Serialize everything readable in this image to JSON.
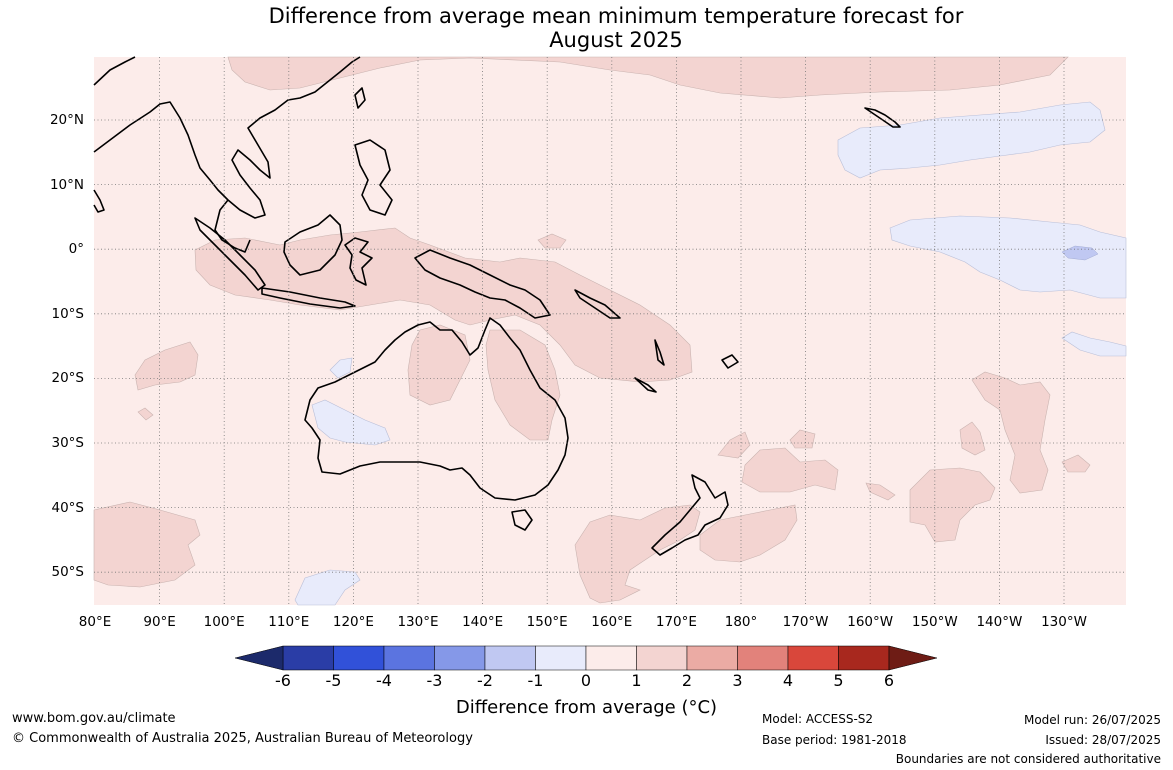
{
  "title_line1": "Difference from average mean minimum temperature forecast for",
  "title_line2": "August 2025",
  "lon_labels": [
    "80°E",
    "90°E",
    "100°E",
    "110°E",
    "120°E",
    "130°E",
    "140°E",
    "150°E",
    "160°E",
    "170°E",
    "180°",
    "170°W",
    "160°W",
    "150°W",
    "140°W",
    "130°W"
  ],
  "lat_labels": [
    "20°N",
    "10°N",
    "0°",
    "10°S",
    "20°S",
    "30°S",
    "40°S",
    "50°S"
  ],
  "colorbar": {
    "ticks": [
      "-6",
      "-5",
      "-4",
      "-3",
      "-2",
      "-1",
      "0",
      "1",
      "2",
      "3",
      "4",
      "5",
      "6"
    ],
    "colors": [
      "#2a3da6",
      "#3151d9",
      "#5b74e0",
      "#8598e8",
      "#c0c8f2",
      "#e8ebfb",
      "#fcecea",
      "#f3d4d1",
      "#ebaba4",
      "#e2827b",
      "#d9473b",
      "#a8281e"
    ],
    "under_color": "#1c2a6b",
    "over_color": "#6e1c15",
    "label": "Difference from average (°C)"
  },
  "footer": {
    "website": "www.bom.gov.au/climate",
    "copyright": "© Commonwealth of Australia 2025, Australian Bureau of Meteorology",
    "model": "Model: ACCESS-S2",
    "base_period": "Base period: 1981-2018",
    "model_run": "Model run: 26/07/2025",
    "issued": "Issued: 28/07/2025",
    "disclaimer": "Boundaries are not considered authoritative"
  },
  "map_colors": {
    "background": "#fcecea",
    "warm_anomaly": "#f3d4d1",
    "cool_anomaly": "#e8ebfb",
    "cooler_anomaly": "#c0c8f2"
  }
}
